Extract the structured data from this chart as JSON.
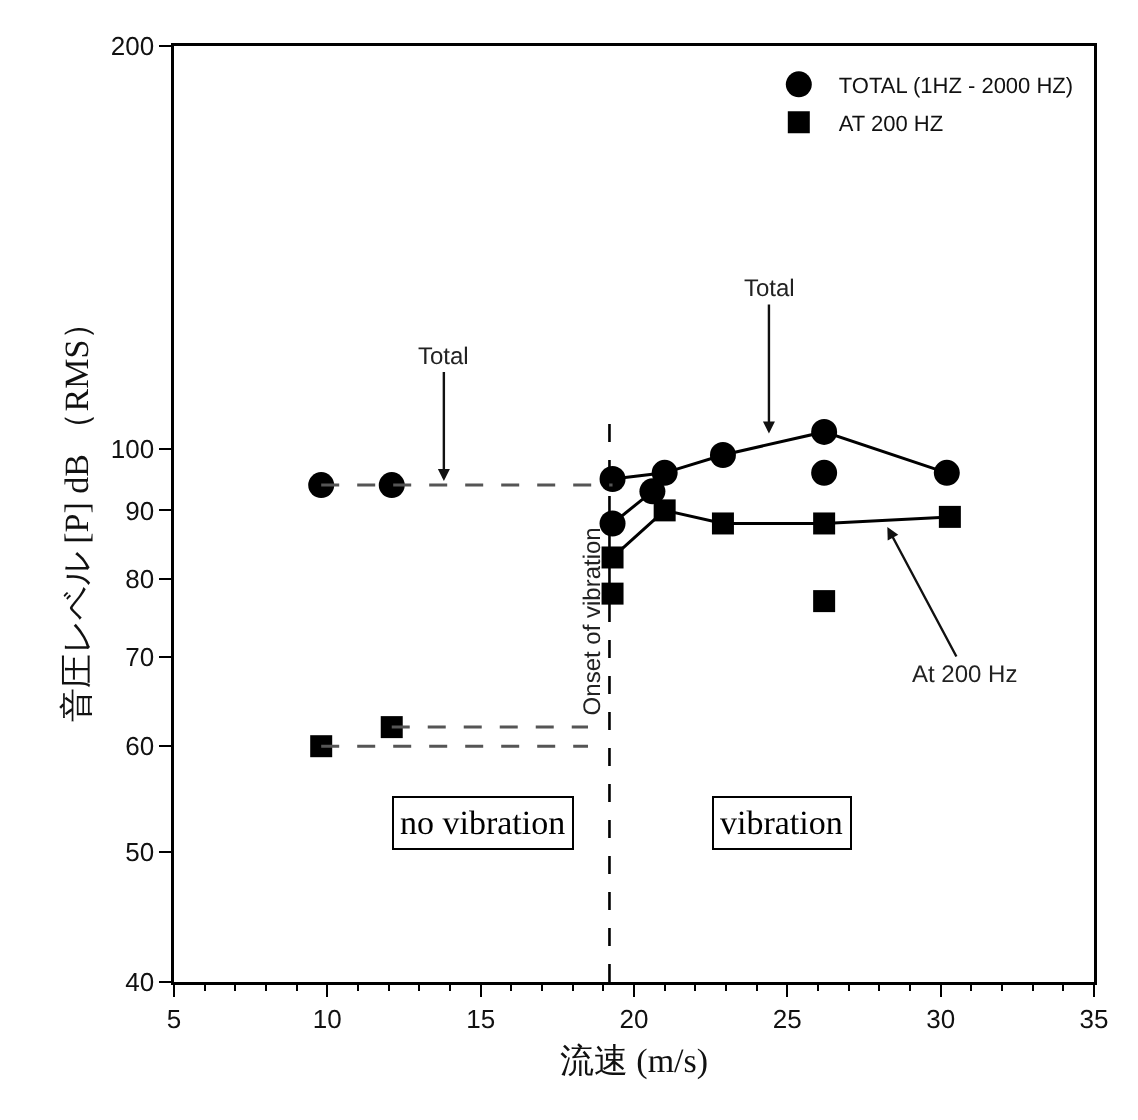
{
  "chart_data": {
    "type": "scatter",
    "xlabel": "流速 (m/s)",
    "ylabel": "音圧レベル [P] dB （RMS）",
    "xlim": [
      5,
      35
    ],
    "xticks": [
      5,
      10,
      15,
      20,
      25,
      30,
      35
    ],
    "ylim": [
      40,
      200
    ],
    "yticks": [
      40,
      50,
      60,
      70,
      80,
      90,
      100,
      200
    ],
    "log": "y",
    "grid": false,
    "legend": "top right",
    "series": [
      {
        "name": "TOTAL (1HZ - 2000 HZ)",
        "marker": "circle",
        "color": "#000000",
        "x": [
          9.8,
          12.1,
          19.3,
          19.3,
          20.6,
          21.0,
          22.9,
          26.2,
          26.2,
          30.2
        ],
        "values": [
          94,
          94,
          95,
          88,
          93,
          96,
          99,
          103,
          96,
          96
        ]
      },
      {
        "type": "line",
        "marker": "none",
        "color": "#000000",
        "x": [
          19.3,
          21.0,
          22.9,
          26.2,
          30.2
        ],
        "values": [
          95,
          96,
          99,
          103,
          96
        ]
      },
      {
        "type": "line",
        "marker": "none",
        "color": "#000000",
        "x": [
          19.3,
          20.6
        ],
        "values": [
          88,
          93
        ]
      },
      {
        "type": "line",
        "marker": "none",
        "line_style": "dashed",
        "color": "#555555",
        "x": [
          9.8,
          19.3
        ],
        "values": [
          94,
          94
        ]
      },
      {
        "name": "AT 200 HZ",
        "marker": "square",
        "color": "#000000",
        "x": [
          9.8,
          12.1,
          19.3,
          19.3,
          21.0,
          22.9,
          26.2,
          26.2,
          30.3
        ],
        "values": [
          60,
          62,
          78,
          83,
          90,
          88,
          88,
          77,
          89
        ]
      },
      {
        "type": "line",
        "marker": "none",
        "color": "#000000",
        "x": [
          19.3,
          21.0,
          22.9,
          26.2,
          30.3
        ],
        "values": [
          83,
          90,
          88,
          88,
          89
        ]
      },
      {
        "type": "line",
        "marker": "none",
        "line_style": "dashed",
        "color": "#555555",
        "x": [
          12.1,
          18.5
        ],
        "values": [
          62,
          62
        ]
      },
      {
        "type": "line",
        "marker": "none",
        "line_style": "dashed",
        "color": "#555555",
        "x": [
          9.8,
          18.5
        ],
        "values": [
          60,
          60
        ]
      }
    ],
    "ref_lines": [
      {
        "axis": "x",
        "value": 19.2,
        "label": "Onset of vibration",
        "line_style": "dashed",
        "color": "#000000"
      }
    ],
    "annotations": [
      {
        "text": "Total",
        "x": 13.8,
        "y": 94
      },
      {
        "text": "Total",
        "x": 24.4,
        "y": 102
      },
      {
        "text": "At 200 Hz",
        "x": 28.2,
        "y": 88
      },
      "no vibration",
      "vibration"
    ]
  }
}
